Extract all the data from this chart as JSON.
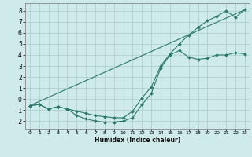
{
  "xlabel": "Humidex (Indice chaleur)",
  "bg_color": "#ceeaea",
  "grid_color": "#aacaca",
  "line_color": "#2a7a6a",
  "xlim": [
    -0.5,
    23.5
  ],
  "ylim": [
    -2.7,
    8.7
  ],
  "yticks": [
    -2,
    -1,
    0,
    1,
    2,
    3,
    4,
    5,
    6,
    7,
    8
  ],
  "xticks": [
    0,
    1,
    2,
    3,
    4,
    5,
    6,
    7,
    8,
    9,
    10,
    11,
    12,
    13,
    14,
    15,
    16,
    17,
    18,
    19,
    20,
    21,
    22,
    23
  ],
  "line1_x": [
    0,
    1,
    2,
    3,
    4,
    5,
    6,
    7,
    8,
    9,
    10,
    11,
    12,
    13,
    14,
    15,
    16,
    17,
    18,
    19,
    20,
    21,
    22,
    23
  ],
  "line1_y": [
    -0.6,
    -0.5,
    -0.9,
    -0.7,
    -0.9,
    -1.5,
    -1.8,
    -2.0,
    -2.1,
    -2.1,
    -2.0,
    -1.7,
    -0.5,
    0.5,
    2.8,
    4.0,
    4.4,
    3.8,
    3.6,
    3.7,
    4.0,
    4.0,
    4.2,
    4.1
  ],
  "line2_x": [
    0,
    1,
    2,
    3,
    4,
    5,
    6,
    7,
    8,
    9,
    10,
    11,
    12,
    13,
    14,
    15,
    16,
    17,
    18,
    19,
    20,
    21,
    22,
    23
  ],
  "line2_y": [
    -0.6,
    -0.5,
    -0.9,
    -0.7,
    -0.9,
    -1.1,
    -1.3,
    -1.5,
    -1.6,
    -1.7,
    -1.7,
    -1.1,
    0.1,
    1.1,
    3.0,
    4.1,
    5.0,
    5.8,
    6.5,
    7.1,
    7.5,
    8.0,
    7.4,
    8.1
  ],
  "line3_x": [
    0,
    23
  ],
  "line3_y": [
    -0.6,
    8.1
  ]
}
